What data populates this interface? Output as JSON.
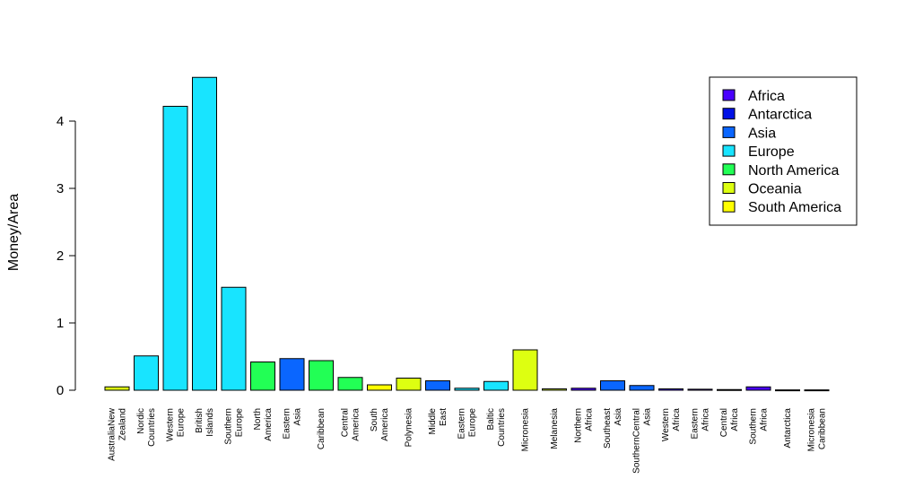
{
  "chart_data": {
    "type": "bar",
    "title": "",
    "xlabel": "",
    "ylabel": "Money/Area",
    "ylim": [
      0,
      4.7
    ],
    "yticks": [
      0,
      1,
      2,
      3,
      4
    ],
    "grid": false,
    "legend_position": "top-right",
    "categories": [
      {
        "lines": [
          "AustraliaNew",
          "Zealand"
        ],
        "value": 0.05,
        "group": "Oceania"
      },
      {
        "lines": [
          "Nordic",
          "Countries"
        ],
        "value": 0.51,
        "group": "Europe"
      },
      {
        "lines": [
          "Western",
          "Europe"
        ],
        "value": 4.22,
        "group": "Europe"
      },
      {
        "lines": [
          "British",
          "Islands"
        ],
        "value": 4.65,
        "group": "Europe"
      },
      {
        "lines": [
          "Southern",
          "Europe"
        ],
        "value": 1.53,
        "group": "Europe"
      },
      {
        "lines": [
          "North",
          "America"
        ],
        "value": 0.42,
        "group": "North America"
      },
      {
        "lines": [
          "Eastern",
          "Asia"
        ],
        "value": 0.47,
        "group": "Asia"
      },
      {
        "lines": [
          "Caribbean"
        ],
        "value": 0.44,
        "group": "North America"
      },
      {
        "lines": [
          "Central",
          "America"
        ],
        "value": 0.19,
        "group": "North America"
      },
      {
        "lines": [
          "South",
          "America"
        ],
        "value": 0.08,
        "group": "South America"
      },
      {
        "lines": [
          "Polynesia"
        ],
        "value": 0.18,
        "group": "Oceania"
      },
      {
        "lines": [
          "Middle",
          "East"
        ],
        "value": 0.14,
        "group": "Asia"
      },
      {
        "lines": [
          "Eastern",
          "Europe"
        ],
        "value": 0.03,
        "group": "Europe"
      },
      {
        "lines": [
          "Baltic",
          "Countries"
        ],
        "value": 0.13,
        "group": "Europe"
      },
      {
        "lines": [
          "Micronesia"
        ],
        "value": 0.6,
        "group": "Oceania"
      },
      {
        "lines": [
          "Melanesia"
        ],
        "value": 0.02,
        "group": "Oceania"
      },
      {
        "lines": [
          "Northern",
          "Africa"
        ],
        "value": 0.03,
        "group": "Africa"
      },
      {
        "lines": [
          "Southeast",
          "Asia"
        ],
        "value": 0.14,
        "group": "Asia"
      },
      {
        "lines": [
          "SouthernCentral",
          "Asia"
        ],
        "value": 0.07,
        "group": "Asia"
      },
      {
        "lines": [
          "Western",
          "Africa"
        ],
        "value": 0.02,
        "group": "Africa"
      },
      {
        "lines": [
          "Eastern",
          "Africa"
        ],
        "value": 0.015,
        "group": "Africa"
      },
      {
        "lines": [
          "Central",
          "Africa"
        ],
        "value": 0.01,
        "group": "Africa"
      },
      {
        "lines": [
          "Southern",
          "Africa"
        ],
        "value": 0.05,
        "group": "Africa"
      },
      {
        "lines": [
          "Antarctica"
        ],
        "value": 0.005,
        "group": "Antarctica"
      },
      {
        "lines": [
          "Micronesia",
          "Caribbean"
        ],
        "value": 0.005,
        "group": "Oceania"
      }
    ],
    "legend": [
      {
        "name": "Africa",
        "color": "#4a00ff"
      },
      {
        "name": "Antarctica",
        "color": "#0011e6"
      },
      {
        "name": "Asia",
        "color": "#0a66ff"
      },
      {
        "name": "Europe",
        "color": "#18e4ff"
      },
      {
        "name": "North America",
        "color": "#22ff55"
      },
      {
        "name": "Oceania",
        "color": "#ddff11"
      },
      {
        "name": "South America",
        "color": "#ffff00"
      }
    ]
  }
}
